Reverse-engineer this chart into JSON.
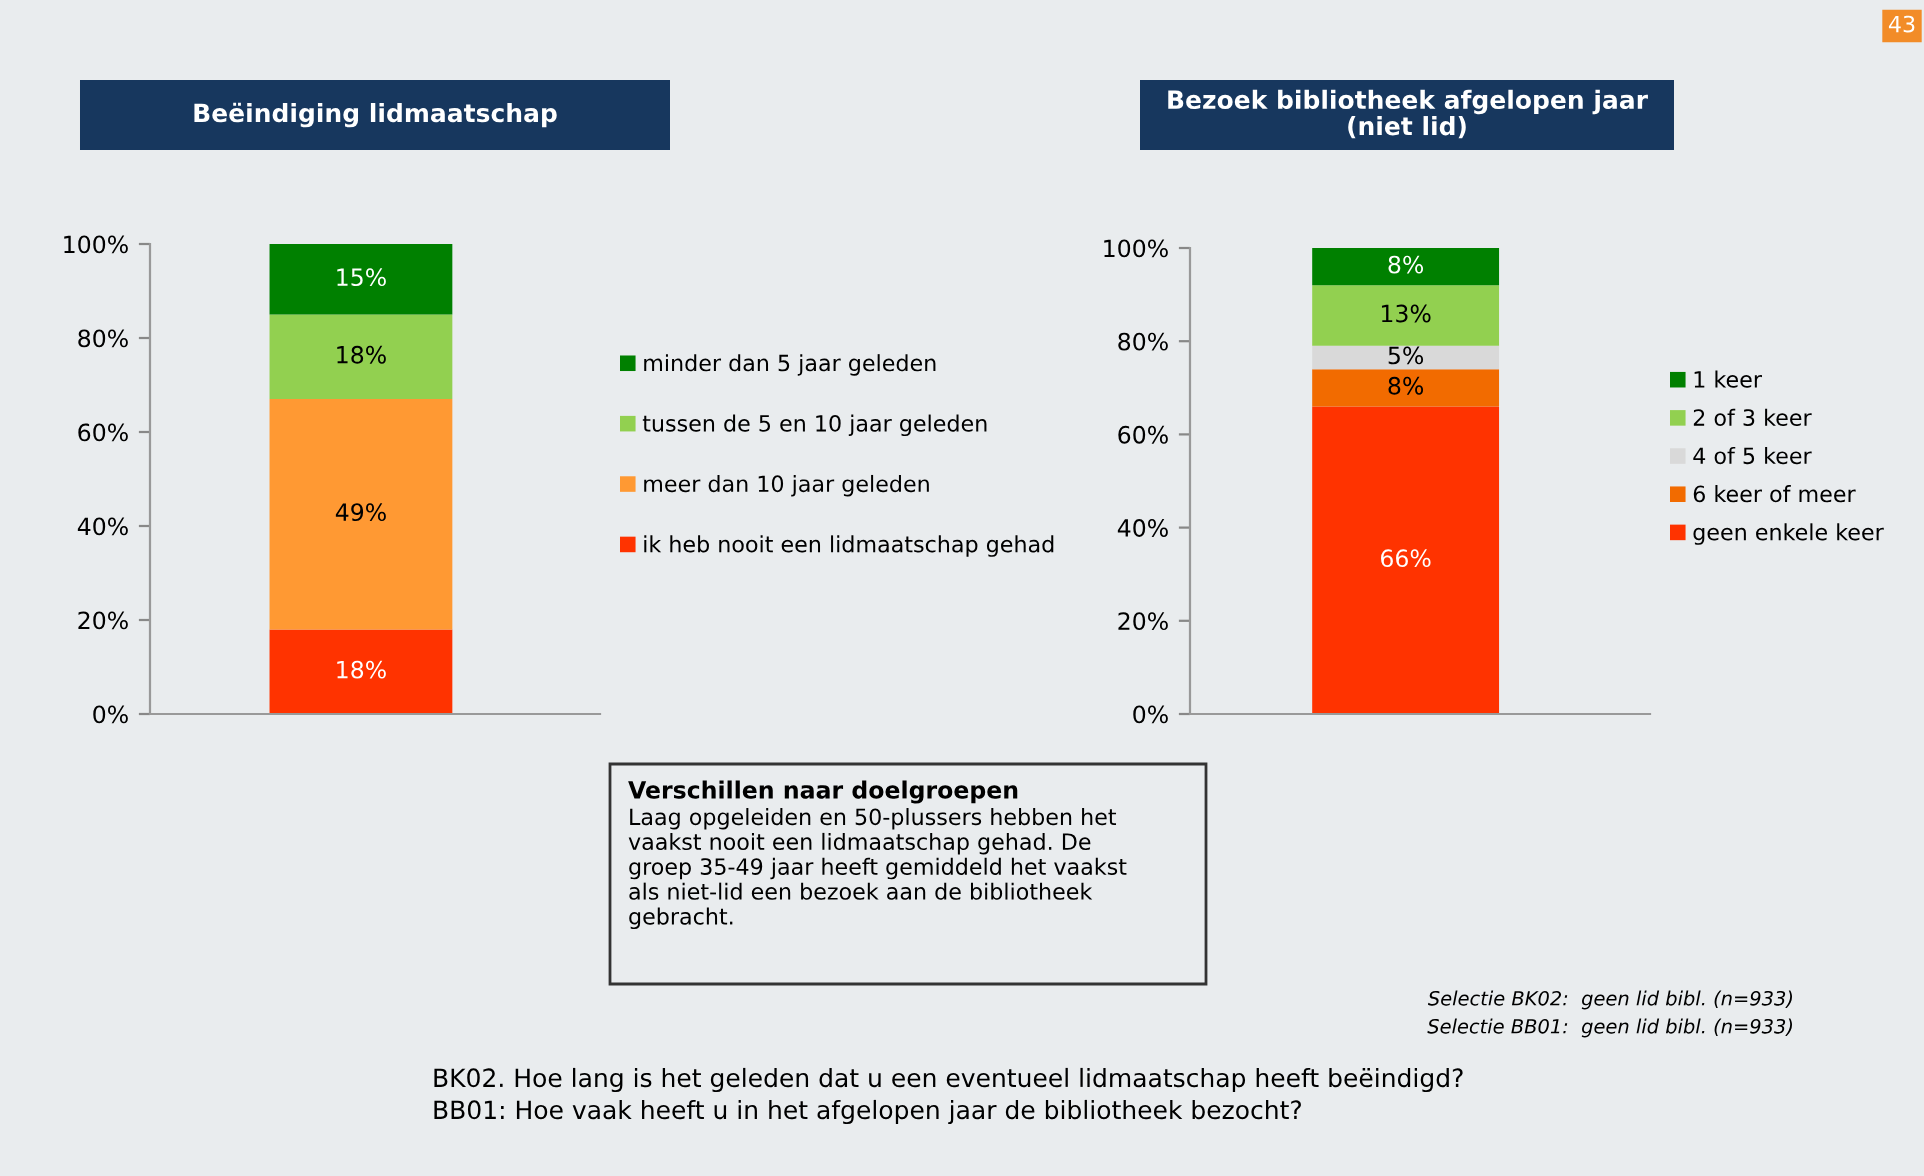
{
  "chart_data": [
    {
      "type": "bar",
      "title": "Beëindiging lidmaatschap",
      "categories": [
        null
      ],
      "stacked": true,
      "legend": "right",
      "grid": false,
      "ylim": [
        0,
        100
      ],
      "yticks": [
        {
          "value": 0,
          "label": "0%"
        },
        {
          "value": 20,
          "label": "20%"
        },
        {
          "value": 40,
          "label": "40%"
        },
        {
          "value": 60,
          "label": "60%"
        },
        {
          "value": 80,
          "label": "80%"
        },
        {
          "value": 100,
          "label": "100%"
        }
      ],
      "series": [
        {
          "name": "ik heb nooit een lidmaatschap gehad",
          "color": "#ff3300",
          "values": [
            18
          ],
          "value_labels": [
            "18%"
          ]
        },
        {
          "name": "meer dan 10 jaar geleden",
          "color": "#ff9933",
          "values": [
            49
          ],
          "value_labels": [
            "49%"
          ]
        },
        {
          "name": "tussen de 5 en 10 jaar geleden",
          "color": "#92d050",
          "values": [
            18
          ],
          "value_labels": [
            "18%"
          ]
        },
        {
          "name": "minder dan 5 jaar geleden",
          "color": "#008000",
          "values": [
            15
          ],
          "value_labels": [
            "15%"
          ]
        }
      ],
      "annotations": [
        "Verschillen naar doelgroepen",
        "Laag opgeleiden en 50-plussers hebben het\nvaakst nooit een lidmaatschap gehad. De\ngroep 35-49 jaar heeft gemiddeld het vaakst\nals niet-lid een bezoek aan de bibliotheek\ngebracht."
      ]
    },
    {
      "type": "bar",
      "title": "Bezoek bibliotheek afgelopen jaar\n(niet lid)",
      "categories": [
        null
      ],
      "stacked": true,
      "legend": "right",
      "grid": false,
      "ylim": [
        0,
        100
      ],
      "yticks": [
        {
          "value": 0,
          "label": "0%"
        },
        {
          "value": 20,
          "label": "20%"
        },
        {
          "value": 40,
          "label": "40%"
        },
        {
          "value": 60,
          "label": "60%"
        },
        {
          "value": 80,
          "label": "80%"
        },
        {
          "value": 100,
          "label": "100%"
        }
      ],
      "series": [
        {
          "name": "geen enkele keer",
          "color": "#ff3300",
          "values": [
            66
          ],
          "value_labels": [
            "66%"
          ]
        },
        {
          "name": "6 keer of meer",
          "color": "#f26b00",
          "values": [
            8
          ],
          "value_labels": [
            "8%"
          ]
        },
        {
          "name": "4 of 5 keer",
          "color": "#d9d9d9",
          "values": [
            5
          ],
          "value_labels": [
            "5%"
          ]
        },
        {
          "name": "2 of 3 keer",
          "color": "#92d050",
          "values": [
            13
          ],
          "value_labels": [
            "13%"
          ]
        },
        {
          "name": "1 keer",
          "color": "#008000",
          "values": [
            8
          ],
          "value_labels": [
            "8%"
          ]
        }
      ],
      "annotations": [
        "Selectie BK02:  geen lid bibl. (n=933)",
        "Selectie BB01:  geen lid bibl. (n=933)",
        "BK02. Hoe lang is het geleden dat u een eventueel lidmaatschap heeft beëindigd?",
        "BB01: Hoe vaak heeft u in het afgelopen jaar de bibliotheek bezocht?",
        "43"
      ]
    }
  ]
}
